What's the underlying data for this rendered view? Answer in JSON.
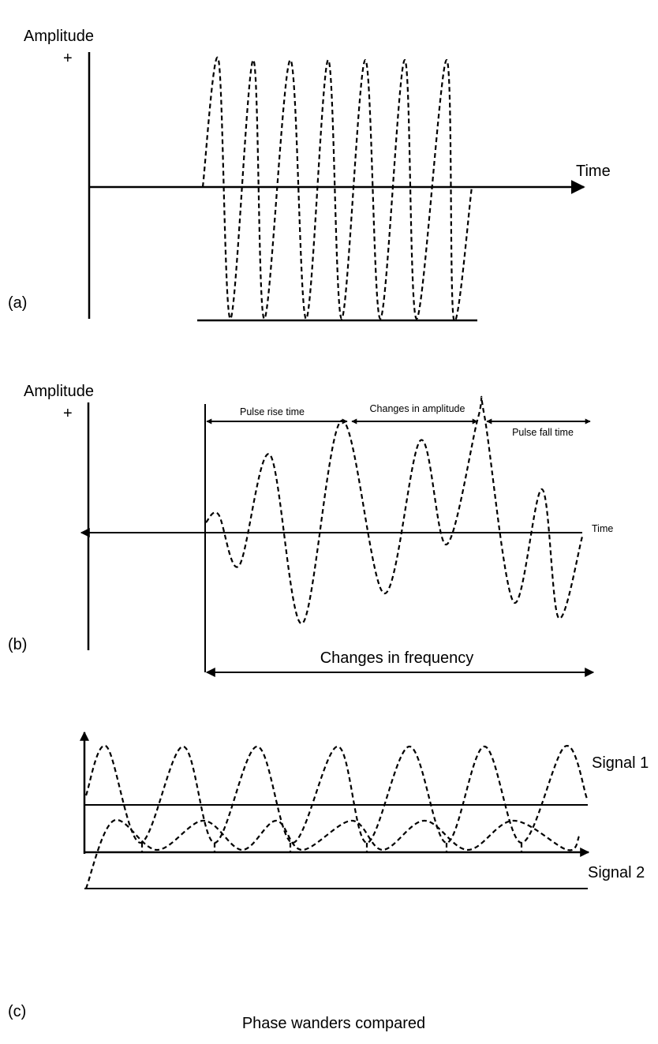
{
  "panel_a": {
    "panel_label": "(a)",
    "y_axis_label": "Amplitude",
    "y_axis_sign": "+",
    "x_axis_label": "Time"
  },
  "panel_b": {
    "panel_label": "(b)",
    "y_axis_label": "Amplitude",
    "y_axis_sign": "+",
    "x_axis_label": "Time",
    "annotations": {
      "rise": "Pulse rise time",
      "amplitude": "Changes in amplitude",
      "fall": "Pulse fall time",
      "frequency": "Changes in frequency"
    }
  },
  "panel_c": {
    "panel_label": "(c)",
    "signal_1_label": "Signal 1",
    "signal_2_label": "Signal 2",
    "caption": "Phase wanders compared"
  }
}
